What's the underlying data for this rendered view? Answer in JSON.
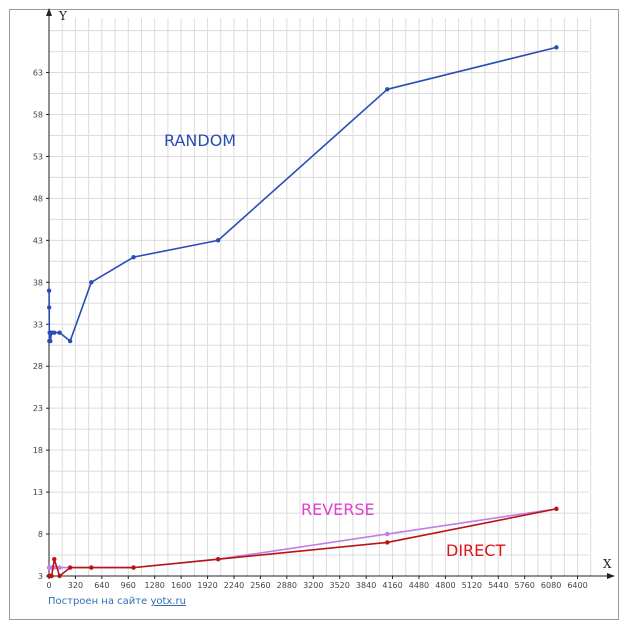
{
  "chart_data": {
    "type": "line",
    "xlabel": "X",
    "ylabel": "Y",
    "xlim": [
      0,
      6660
    ],
    "ylim": [
      3,
      69.5
    ],
    "x_ticks": [
      0,
      320,
      640,
      960,
      1280,
      1600,
      1920,
      2240,
      2560,
      2880,
      3200,
      3520,
      3840,
      4160,
      4480,
      4800,
      5120,
      5440,
      5760,
      6080,
      6400
    ],
    "y_ticks": [
      3,
      8,
      13,
      18,
      23,
      28,
      33,
      38,
      43,
      48,
      53,
      58,
      63
    ],
    "grid": true,
    "series": [
      {
        "name": "RANDOM",
        "color": "#2a4db5",
        "label_color": "#2a4db5",
        "points": [
          [
            1,
            37
          ],
          [
            2,
            35
          ],
          [
            4,
            31
          ],
          [
            8,
            32
          ],
          [
            16,
            31
          ],
          [
            32,
            32
          ],
          [
            64,
            32
          ],
          [
            128,
            32
          ],
          [
            256,
            31
          ],
          [
            512,
            38
          ],
          [
            1024,
            41
          ],
          [
            2048,
            43
          ],
          [
            4096,
            61
          ],
          [
            6144,
            66
          ]
        ]
      },
      {
        "name": "REVERSE",
        "color": "#bf7fe6",
        "label_color": "#e03fd1",
        "points": [
          [
            1,
            4
          ],
          [
            2,
            4
          ],
          [
            4,
            4
          ],
          [
            8,
            4
          ],
          [
            16,
            4
          ],
          [
            32,
            4
          ],
          [
            64,
            4
          ],
          [
            128,
            4
          ],
          [
            256,
            4
          ],
          [
            512,
            4
          ],
          [
            1024,
            4
          ],
          [
            2048,
            5
          ],
          [
            4096,
            8
          ],
          [
            6144,
            11
          ]
        ]
      },
      {
        "name": "DIRECT",
        "color": "#b81414",
        "label_color": "#e01414",
        "points": [
          [
            1,
            3
          ],
          [
            2,
            3
          ],
          [
            4,
            3
          ],
          [
            8,
            3
          ],
          [
            16,
            3
          ],
          [
            32,
            3
          ],
          [
            64,
            5
          ],
          [
            128,
            3
          ],
          [
            256,
            4
          ],
          [
            512,
            4
          ],
          [
            1024,
            4
          ],
          [
            2048,
            5
          ],
          [
            4096,
            7
          ],
          [
            6144,
            11
          ]
        ]
      }
    ]
  },
  "credit": {
    "text": "Построен на сайте",
    "link": "yotx.ru"
  }
}
